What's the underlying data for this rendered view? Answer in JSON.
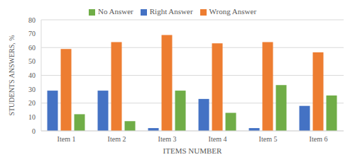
{
  "chart_data": {
    "type": "bar",
    "x_label": "ITEMS NUMBER",
    "y_label": "STUDENTS ANSWERS, %",
    "categories": [
      "Item 1",
      "Item 2",
      "Item 3",
      "Item 4",
      "Item 5",
      "Item 6"
    ],
    "series": [
      {
        "name": "Right Answer",
        "color": "#4472c4",
        "values": [
          29,
          29,
          2,
          23,
          2,
          18
        ]
      },
      {
        "name": "Wrong Answer",
        "color": "#ed7d31",
        "values": [
          59,
          64,
          69,
          63,
          64,
          56.5
        ]
      },
      {
        "name": "No Answer",
        "color": "#70ad47",
        "values": [
          12,
          7,
          29,
          13,
          33,
          25.5
        ]
      }
    ],
    "ylim": [
      0,
      80
    ],
    "yticks": [
      0,
      10,
      20,
      30,
      40,
      50,
      60,
      70,
      80
    ],
    "grid": true,
    "legend": "top"
  }
}
